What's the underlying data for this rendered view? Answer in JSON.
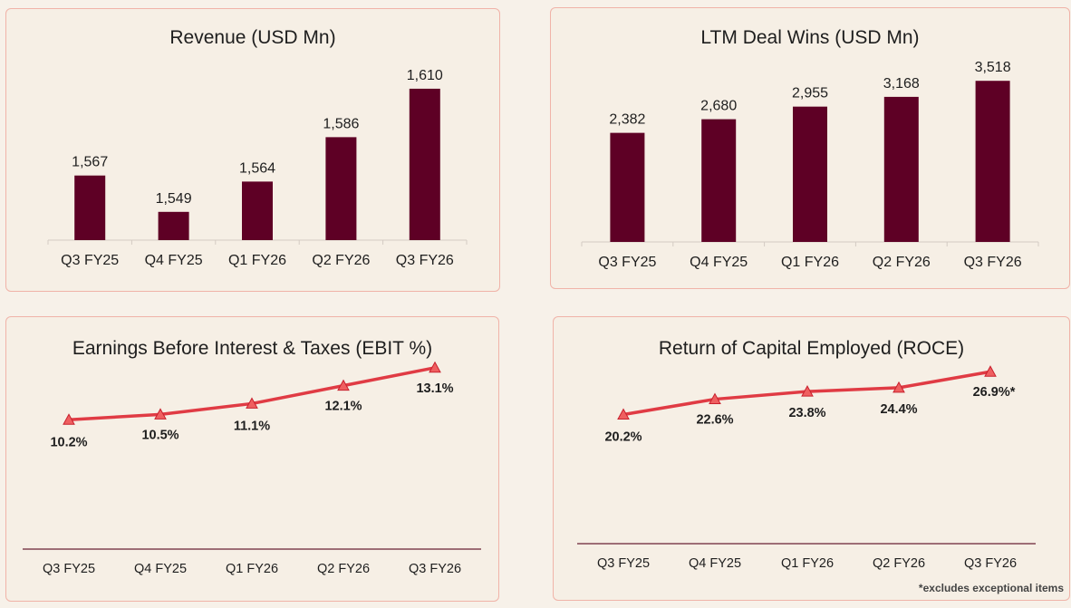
{
  "theme": {
    "bar_color": "#5e0025",
    "line_color": "#e03b44",
    "marker_fill": "#ef5f60",
    "axis_color": "#d4cbc3",
    "line_axis_color": "#6a2034",
    "label_color": "#1e1e1e"
  },
  "chart_data": [
    {
      "id": "revenue",
      "type": "bar",
      "title": "Revenue (USD Mn)",
      "categories": [
        "Q3 FY25",
        "Q4 FY25",
        "Q1 FY26",
        "Q2 FY26",
        "Q3 FY26"
      ],
      "values": [
        1567,
        1549,
        1564,
        1586,
        1610
      ],
      "value_labels": [
        "1,567",
        "1,549",
        "1,564",
        "1,586",
        "1,610"
      ],
      "ylim": [
        1535,
        1614
      ],
      "grid": false
    },
    {
      "id": "deals",
      "type": "bar",
      "title": "LTM Deal Wins (USD Mn)",
      "categories": [
        "Q3 FY25",
        "Q4 FY25",
        "Q1 FY26",
        "Q2 FY26",
        "Q3 FY26"
      ],
      "values": [
        2382,
        2680,
        2955,
        3168,
        3518
      ],
      "value_labels": [
        "2,382",
        "2,680",
        "2,955",
        "3,168",
        "3,518"
      ],
      "ylim": [
        0,
        3720
      ],
      "grid": false
    },
    {
      "id": "ebit",
      "type": "line",
      "title": "Earnings Before Interest & Taxes (EBIT %)",
      "categories": [
        "Q3 FY25",
        "Q4 FY25",
        "Q1 FY26",
        "Q2 FY26",
        "Q3 FY26"
      ],
      "values": [
        10.2,
        10.5,
        11.1,
        12.1,
        13.1
      ],
      "value_labels": [
        "10.2%",
        "10.5%",
        "11.1%",
        "12.1%",
        "13.1%"
      ],
      "ylim": [
        3.0,
        14.3
      ],
      "grid": false
    },
    {
      "id": "roce",
      "type": "line",
      "title": "Return of Capital Employed (ROCE)",
      "categories": [
        "Q3 FY25",
        "Q4 FY25",
        "Q1 FY26",
        "Q2 FY26",
        "Q3 FY26"
      ],
      "values": [
        20.2,
        22.6,
        23.8,
        24.4,
        26.9
      ],
      "value_labels": [
        "20.2%",
        "22.6%",
        "23.8%",
        "24.4%",
        "26.9%*"
      ],
      "ylim": [
        0,
        30.9
      ],
      "grid": false,
      "footnote": "*excludes exceptional items"
    }
  ]
}
